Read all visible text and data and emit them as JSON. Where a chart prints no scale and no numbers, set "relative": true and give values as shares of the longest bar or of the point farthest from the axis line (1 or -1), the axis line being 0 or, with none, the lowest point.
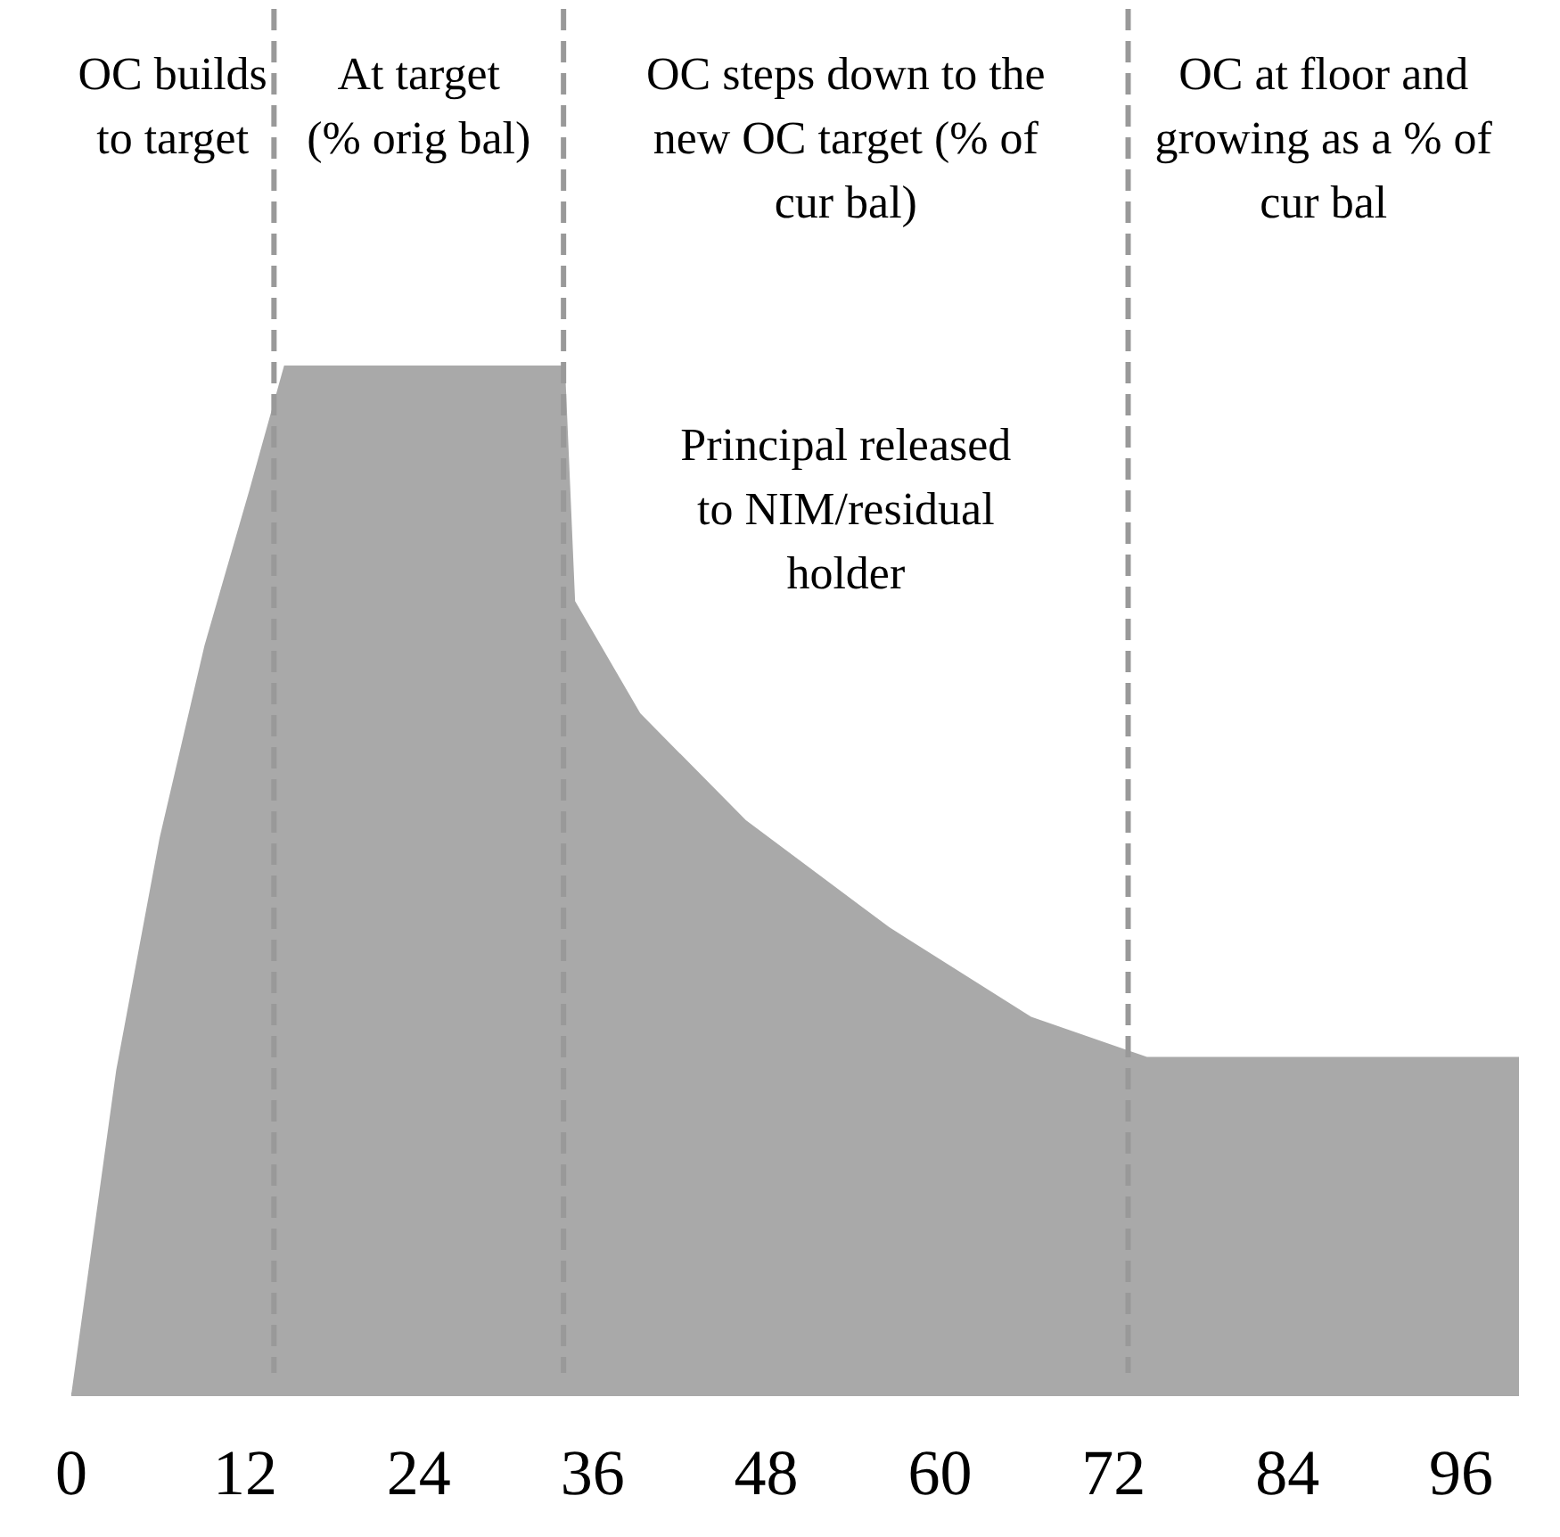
{
  "chart_data": {
    "type": "area",
    "relative": true,
    "xlim": [
      0,
      100
    ],
    "xticks": [
      0,
      12,
      24,
      36,
      48,
      60,
      72,
      84,
      96
    ],
    "grid": false,
    "series": [
      {
        "color": "#a9a9a9",
        "x": [
          0,
          3.1,
          6.1,
          9.2,
          12.3,
          14.7,
          34.1,
          34.8,
          39.3,
          46.6,
          56.5,
          66.3,
          74.3,
          100
        ],
        "values": [
          0,
          0.315,
          0.541,
          0.728,
          0.879,
          1,
          1,
          0.771,
          0.662,
          0.558,
          0.454,
          0.367,
          0.328,
          0.328
        ]
      }
    ],
    "ref_lines": [
      {
        "axis": "x",
        "value": 14,
        "color": "#999999",
        "line_style": "dashed"
      },
      {
        "axis": "x",
        "value": 34,
        "color": "#999999",
        "line_style": "dashed"
      },
      {
        "axis": "x",
        "value": 73,
        "color": "#999999",
        "line_style": "dashed"
      }
    ],
    "annotations": [
      "OC builds\nto target",
      "At target\n(% orig bal)",
      "OC steps down to the\nnew OC target (% of\ncur bal)",
      "OC at floor and\ngrowing as a % of\ncur bal",
      "Principal released\nto NIM/residual\nholder"
    ]
  }
}
